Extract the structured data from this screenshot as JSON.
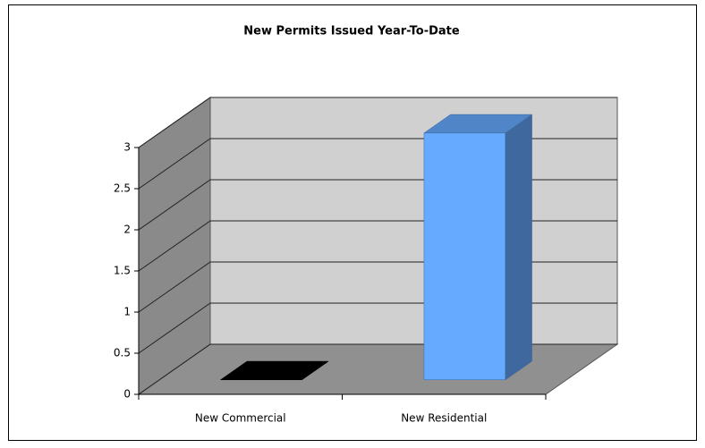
{
  "chart_data": {
    "type": "bar3d",
    "title": "New Permits Issued Year-To-Date",
    "categories": [
      "New Commercial",
      "New Residential"
    ],
    "values": [
      0,
      3
    ],
    "colors": [
      "#000000",
      "#66aaff"
    ],
    "ylim": [
      0,
      3
    ],
    "yticks": [
      0,
      0.5,
      1,
      1.5,
      2,
      2.5,
      3
    ],
    "grid": true
  }
}
